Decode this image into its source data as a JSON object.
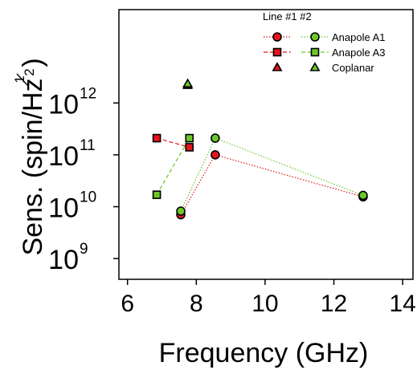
{
  "chart_data": {
    "type": "scatter",
    "xlabel": "Frequency (GHz)",
    "ylabel_main": "Sens. (spin/Hz",
    "ylabel_exp_num": "1",
    "ylabel_exp_den": "2",
    "ylabel_close": ")",
    "xlim": [
      5.75,
      14.3
    ],
    "ylim_log10": [
      8.6,
      13.8
    ],
    "yscale": "log",
    "x_ticks": [
      {
        "value": 6,
        "label": "6"
      },
      {
        "value": 8,
        "label": "8"
      },
      {
        "value": 10,
        "label": "10"
      },
      {
        "value": 12,
        "label": "12"
      },
      {
        "value": 14,
        "label": "14"
      }
    ],
    "y_ticks": [
      {
        "exp": 9,
        "base": "10",
        "sup": "9"
      },
      {
        "exp": 10,
        "base": "10",
        "sup": "10"
      },
      {
        "exp": 11,
        "base": "10",
        "sup": "11"
      },
      {
        "exp": 12,
        "base": "10",
        "sup": "12"
      }
    ],
    "legend": {
      "header": "Line #1 #2",
      "placement": "top-right",
      "rows": [
        {
          "label": "Anapole A1",
          "marker": "circle",
          "dash1": "1.5,2",
          "dash2": "1.5,2"
        },
        {
          "label": "Anapole A3",
          "marker": "square",
          "dash1": "5,3",
          "dash2": "5,3"
        },
        {
          "label": "Coplanar",
          "marker": "triangle",
          "dash1": "",
          "dash2": ""
        }
      ]
    },
    "series": [
      {
        "name": "Anapole A1 #1",
        "marker": "circle",
        "color": "#e8141c",
        "dash": "1.5,2",
        "x": [
          7.55,
          8.55,
          12.85
        ],
        "y": [
          7000000000.0,
          100000000000.0,
          15500000000.0
        ]
      },
      {
        "name": "Anapole A1 #2",
        "marker": "circle",
        "color": "#6cc82a",
        "dash": "1.5,2",
        "x": [
          7.55,
          8.55,
          12.85
        ],
        "y": [
          8200000000.0,
          210000000000.0,
          16500000000.0
        ]
      },
      {
        "name": "Anapole A3 #1",
        "marker": "square",
        "color": "#e8141c",
        "dash": "5,3",
        "x": [
          6.85,
          7.8
        ],
        "y": [
          210000000000.0,
          140000000000.0
        ]
      },
      {
        "name": "Anapole A3 #2",
        "marker": "square",
        "color": "#6cc82a",
        "dash": "5,3",
        "x": [
          6.85,
          7.8
        ],
        "y": [
          17000000000.0,
          210000000000.0
        ]
      },
      {
        "name": "Coplanar #1",
        "marker": "triangle",
        "color": "#e8141c",
        "dash": "",
        "x": [
          7.75
        ],
        "y": [
          2200000000000.0
        ]
      },
      {
        "name": "Coplanar #2",
        "marker": "triangle",
        "color": "#6cc82a",
        "dash": "",
        "x": [
          7.75
        ],
        "y": [
          2350000000000.0
        ]
      }
    ],
    "colors": {
      "line1": "#e8141c",
      "line2": "#6cc82a",
      "axis": "#000000"
    }
  }
}
